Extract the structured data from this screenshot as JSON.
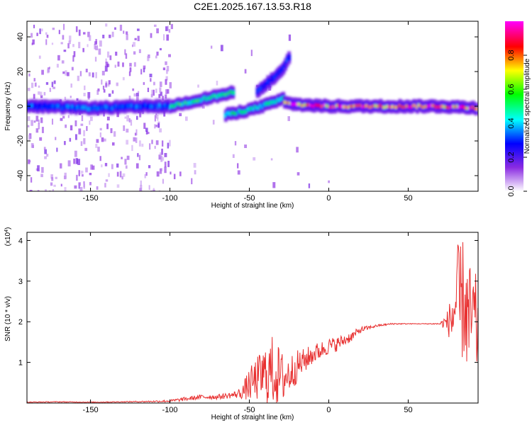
{
  "chart_data": [
    {
      "type": "heatmap",
      "title": "C2E1.2025.167.13.53.R18",
      "xlabel": "Height of straight line (km)",
      "ylabel": "Frequency (Hz)",
      "xlim": [
        -190,
        94
      ],
      "ylim": [
        -49,
        49
      ],
      "xticks": [
        -150,
        -100,
        -50,
        0,
        50
      ],
      "yticks": [
        -40,
        -20,
        0,
        20,
        40
      ],
      "colorbar": {
        "label": "Normalized spectral amplitude",
        "range": [
          0.0,
          1.0
        ],
        "ticks": [
          "0.0",
          "0.2",
          "0.4",
          "0.6",
          "0.8"
        ],
        "colormap": [
          "#ffffff",
          "#8a2be2",
          "#0000ff",
          "#00ffff",
          "#00ff00",
          "#ffff00",
          "#ff0000",
          "#ff00ff"
        ]
      },
      "traces": [
        {
          "x": [
            -190,
            -150,
            -110,
            -100
          ],
          "y": [
            0,
            -1,
            0,
            0
          ],
          "amplitude": 0.35
        },
        {
          "x": [
            -100,
            -85,
            -70,
            -60
          ],
          "y": [
            0,
            3,
            6,
            8
          ],
          "amplitude": 0.55
        },
        {
          "x": [
            -65,
            -50,
            -35,
            -28
          ],
          "y": [
            -5,
            -2,
            2,
            5
          ],
          "amplitude": 0.5
        },
        {
          "x": [
            -45,
            -38,
            -30,
            -25
          ],
          "y": [
            8,
            14,
            20,
            28
          ],
          "amplitude": 0.3
        },
        {
          "x": [
            -28,
            -20,
            0,
            40,
            70,
            94
          ],
          "y": [
            2,
            1,
            0,
            0,
            0,
            -1
          ],
          "amplitude": 0.9
        }
      ],
      "grid": false
    },
    {
      "type": "line",
      "title": "",
      "xlabel": "Height of straight line (km)",
      "ylabel": "SNR (10 * v/v)",
      "y_multiplier": "(x10^4)",
      "xlim": [
        -190,
        94
      ],
      "ylim": [
        0,
        4.2
      ],
      "xticks": [
        -150,
        -100,
        -50,
        0,
        50
      ],
      "yticks": [
        1,
        2,
        3,
        4
      ],
      "series": [
        {
          "color": "#e83030",
          "x": [
            -190,
            -170,
            -150,
            -130,
            -110,
            -100,
            -90,
            -80,
            -70,
            -60,
            -55,
            -50,
            -45,
            -40,
            -35,
            -30,
            -25,
            -20,
            -15,
            -10,
            -5,
            0,
            5,
            10,
            15,
            20,
            25,
            30,
            40,
            50,
            60,
            70,
            75,
            78,
            80,
            82,
            85,
            88,
            90,
            94
          ],
          "y": [
            0.02,
            0.03,
            0.02,
            0.03,
            0.04,
            0.05,
            0.1,
            0.15,
            0.15,
            0.2,
            0.25,
            0.45,
            0.6,
            0.7,
            0.8,
            0.6,
            0.7,
            0.9,
            1.05,
            1.2,
            1.3,
            1.4,
            1.45,
            1.55,
            1.65,
            1.8,
            1.85,
            1.9,
            1.95,
            1.95,
            1.95,
            1.95,
            2.0,
            2.1,
            2.5,
            2.3,
            2.6,
            1.9,
            2.1,
            1.8
          ],
          "noise_amplitude": [
            0.01,
            0.01,
            0.01,
            0.01,
            0.02,
            0.03,
            0.05,
            0.06,
            0.06,
            0.08,
            0.15,
            0.4,
            0.55,
            0.75,
            0.9,
            0.7,
            0.5,
            0.4,
            0.3,
            0.25,
            0.22,
            0.2,
            0.18,
            0.15,
            0.12,
            0.08,
            0.05,
            0.03,
            0.02,
            0.01,
            0.01,
            0.02,
            0.3,
            0.8,
            1.4,
            1.6,
            1.5,
            1.5,
            1.4,
            1.2
          ]
        }
      ],
      "grid": false
    }
  ]
}
